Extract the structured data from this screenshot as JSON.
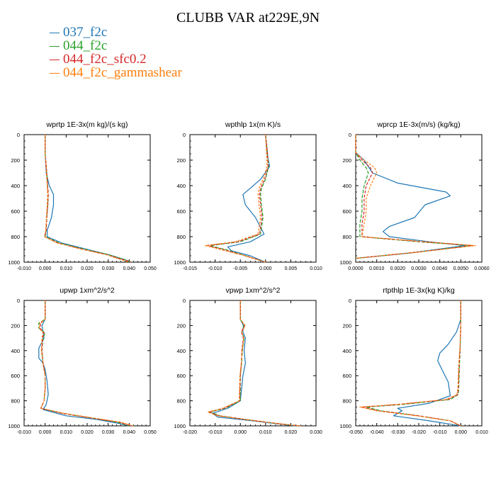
{
  "figure": {
    "title": "CLUBB VAR at229E,9N",
    "legend": [
      {
        "name": "037_f2c",
        "color": "#1f77b4"
      },
      {
        "name": "044_f2c",
        "color": "#2ca02c"
      },
      {
        "name": "044_f2c_sfc0.2",
        "color": "#d62728"
      },
      {
        "name": "044_f2c_gammashear",
        "color": "#ff7f0e"
      }
    ]
  },
  "chart_data": [
    {
      "type": "line",
      "title": "wprtp  1E-3x(m kg)/(s kg)",
      "xlim": [
        -0.01,
        0.05
      ],
      "ylim": [
        1000,
        0
      ],
      "xticks": [
        "-0.010",
        "0.000",
        "0.010",
        "0.020",
        "0.030",
        "0.040",
        "0.050"
      ],
      "yticks": [
        "0",
        "200",
        "400",
        "600",
        "800",
        "1000"
      ],
      "series": [
        {
          "name": "037_f2c",
          "color": "#1f77b4",
          "x": [
            0.0,
            0.0,
            0.0005,
            0.002,
            0.004,
            0.004,
            0.003,
            0.001,
            0.001,
            0.008,
            0.02,
            0.03,
            0.038,
            0.041
          ],
          "y": [
            0,
            150,
            300,
            400,
            470,
            550,
            650,
            750,
            800,
            850,
            900,
            940,
            980,
            1000
          ]
        },
        {
          "name": "044_f2c",
          "color": "#2ca02c",
          "x": [
            0.0,
            0.0,
            0.0008,
            0.0012,
            0.0015,
            0.0013,
            0.0008,
            0.0005,
            0.0,
            0.007,
            0.019,
            0.03,
            0.038,
            0.041
          ],
          "y": [
            0,
            150,
            300,
            400,
            470,
            550,
            650,
            750,
            800,
            850,
            900,
            940,
            980,
            1000
          ]
        },
        {
          "name": "044_f2c_sfc0.2",
          "color": "#d62728",
          "x": [
            0.0,
            0.0,
            0.0008,
            0.0012,
            0.0015,
            0.0013,
            0.0008,
            0.0005,
            -0.0002,
            0.006,
            0.018,
            0.029,
            0.037,
            0.041
          ],
          "y": [
            0,
            150,
            300,
            400,
            470,
            550,
            650,
            750,
            800,
            850,
            900,
            940,
            980,
            1000
          ]
        },
        {
          "name": "044_f2c_gammashear",
          "color": "#ff7f0e",
          "x": [
            0.0,
            0.0,
            0.0006,
            0.001,
            0.0012,
            0.001,
            0.0006,
            0.0003,
            -0.0004,
            0.006,
            0.018,
            0.029,
            0.036,
            0.04
          ],
          "y": [
            0,
            150,
            300,
            400,
            470,
            550,
            650,
            750,
            800,
            850,
            900,
            940,
            980,
            1000
          ]
        }
      ]
    },
    {
      "type": "line",
      "title": "wpthlp  1x(m K)/s",
      "xlim": [
        -0.015,
        0.01
      ],
      "ylim": [
        1000,
        0
      ],
      "xticks": [
        "-0.015",
        "-0.010",
        "-0.005",
        "0.000",
        "0.005",
        "0.010"
      ],
      "yticks": [
        "0",
        "200",
        "400",
        "600",
        "800",
        "1000"
      ],
      "series": [
        {
          "name": "037_f2c",
          "color": "#1f77b4",
          "x": [
            0.0,
            0.0003,
            0.0008,
            -0.001,
            -0.003,
            -0.0045,
            -0.004,
            -0.002,
            -0.0003,
            -0.003,
            -0.0075,
            -0.0068,
            -0.003,
            0.0
          ],
          "y": [
            0,
            150,
            250,
            350,
            420,
            470,
            550,
            650,
            780,
            840,
            880,
            910,
            950,
            1000
          ]
        },
        {
          "name": "044_f2c",
          "color": "#2ca02c",
          "x": [
            0.0,
            0.0004,
            0.0006,
            0.0,
            -0.0008,
            -0.001,
            -0.0008,
            -0.0005,
            -0.001,
            -0.005,
            -0.011,
            -0.008,
            -0.004,
            0.0
          ],
          "y": [
            0,
            150,
            250,
            350,
            420,
            470,
            550,
            650,
            780,
            840,
            870,
            900,
            950,
            1000
          ]
        },
        {
          "name": "044_f2c_sfc0.2",
          "color": "#d62728",
          "x": [
            0.0,
            0.0004,
            0.0005,
            -0.0002,
            -0.001,
            -0.0012,
            -0.001,
            -0.0007,
            -0.0012,
            -0.0055,
            -0.0115,
            -0.0085,
            -0.004,
            0.0
          ],
          "y": [
            0,
            150,
            250,
            350,
            420,
            470,
            550,
            650,
            780,
            840,
            870,
            900,
            950,
            1000
          ]
        },
        {
          "name": "044_f2c_gammashear",
          "color": "#ff7f0e",
          "x": [
            0.0,
            0.0002,
            0.0003,
            -0.0005,
            -0.0013,
            -0.0015,
            -0.0013,
            -0.001,
            -0.0015,
            -0.006,
            -0.012,
            -0.009,
            -0.004,
            0.0
          ],
          "y": [
            0,
            150,
            250,
            350,
            420,
            470,
            550,
            650,
            780,
            840,
            870,
            900,
            950,
            1000
          ]
        }
      ]
    },
    {
      "type": "line",
      "title": "wprcp  1E-3x(m/s) (kg/kg)",
      "xlim": [
        0.0,
        0.006
      ],
      "ylim": [
        1000,
        0
      ],
      "xticks": [
        "0.0000",
        "0.0010",
        "0.0020",
        "0.0030",
        "0.0040",
        "0.0050",
        "0.0060"
      ],
      "yticks": [
        "0",
        "200",
        "400",
        "600",
        "800",
        "1000"
      ],
      "series": [
        {
          "name": "037_f2c",
          "color": "#1f77b4",
          "x": [
            0.0,
            0.0,
            0.0004,
            0.0008,
            0.002,
            0.0043,
            0.0045,
            0.0033,
            0.0028,
            0.0016,
            0.0013,
            0.0016,
            0.0035,
            0.0052,
            0.0025,
            0.0
          ],
          "y": [
            0,
            140,
            200,
            300,
            380,
            450,
            480,
            550,
            650,
            720,
            760,
            800,
            840,
            870,
            930,
            970
          ]
        },
        {
          "name": "044_f2c",
          "color": "#2ca02c",
          "x": [
            0.0,
            0.0,
            0.0002,
            0.0005,
            0.0006,
            0.0004,
            0.0003,
            0.0003,
            0.0002,
            0.0002,
            0.003,
            0.0055,
            0.003,
            0.0
          ],
          "y": [
            0,
            140,
            200,
            260,
            300,
            400,
            500,
            600,
            700,
            800,
            840,
            870,
            920,
            970
          ]
        },
        {
          "name": "044_f2c_sfc0.2",
          "color": "#d62728",
          "x": [
            0.0,
            0.0,
            0.0003,
            0.0007,
            0.0008,
            0.0005,
            0.0004,
            0.0004,
            0.0003,
            0.0003,
            0.0032,
            0.0056,
            0.003,
            0.0
          ],
          "y": [
            0,
            140,
            200,
            260,
            300,
            400,
            500,
            600,
            700,
            800,
            840,
            870,
            920,
            970
          ]
        },
        {
          "name": "044_f2c_gammashear",
          "color": "#ff7f0e",
          "x": [
            0.0,
            0.0,
            0.0004,
            0.0009,
            0.001,
            0.0007,
            0.0005,
            0.0005,
            0.0004,
            0.0003,
            0.0033,
            0.0057,
            0.003,
            0.0
          ],
          "y": [
            0,
            140,
            200,
            260,
            300,
            400,
            500,
            600,
            700,
            800,
            840,
            870,
            920,
            970
          ]
        }
      ]
    },
    {
      "type": "line",
      "title": "upwp  1xm^2/s^2",
      "xlim": [
        -0.01,
        0.05
      ],
      "ylim": [
        1000,
        0
      ],
      "xticks": [
        "-0.010",
        "0.000",
        "0.010",
        "0.020",
        "0.030",
        "0.040",
        "0.050"
      ],
      "yticks": [
        "0",
        "200",
        "400",
        "600",
        "800",
        "1000"
      ],
      "series": [
        {
          "name": "037_f2c",
          "color": "#1f77b4",
          "x": [
            0.0,
            0.0,
            -0.0015,
            -0.001,
            -0.0005,
            -0.003,
            -0.003,
            -0.001,
            0.0,
            0.001,
            0.0015,
            0.0005,
            -0.001,
            0.01,
            0.025,
            0.035,
            0.04
          ],
          "y": [
            0,
            150,
            200,
            250,
            300,
            380,
            460,
            500,
            550,
            650,
            750,
            830,
            870,
            920,
            950,
            980,
            1000
          ]
        },
        {
          "name": "044_f2c",
          "color": "#2ca02c",
          "x": [
            0.0,
            0.0,
            -0.003,
            -0.003,
            0.0,
            -0.001,
            -0.0015,
            -0.001,
            0.0,
            0.0,
            -0.0005,
            -0.002,
            0.008,
            0.023,
            0.034,
            0.04
          ],
          "y": [
            0,
            150,
            180,
            220,
            260,
            300,
            400,
            500,
            600,
            700,
            800,
            860,
            900,
            940,
            970,
            1000
          ]
        },
        {
          "name": "044_f2c_sfc0.2",
          "color": "#d62728",
          "x": [
            0.0,
            0.0,
            -0.002,
            -0.0025,
            -0.0005,
            -0.0012,
            -0.0015,
            -0.001,
            0.0,
            0.0,
            -0.0005,
            -0.002,
            0.008,
            0.023,
            0.035,
            0.041
          ],
          "y": [
            0,
            150,
            180,
            220,
            260,
            300,
            400,
            500,
            600,
            700,
            800,
            860,
            900,
            940,
            970,
            1000
          ]
        },
        {
          "name": "044_f2c_gammashear",
          "color": "#ff7f0e",
          "x": [
            0.0,
            0.0,
            -0.0025,
            -0.0028,
            -0.001,
            -0.0015,
            -0.0018,
            -0.001,
            0.0,
            0.0,
            -0.0005,
            -0.002,
            0.009,
            0.024,
            0.036,
            0.042
          ],
          "y": [
            0,
            150,
            180,
            220,
            260,
            300,
            400,
            500,
            600,
            700,
            800,
            860,
            900,
            940,
            970,
            1000
          ]
        }
      ]
    },
    {
      "type": "line",
      "title": "vpwp  1xm^2/s^2",
      "xlim": [
        -0.02,
        0.03
      ],
      "ylim": [
        1000,
        0
      ],
      "xticks": [
        "-0.020",
        "-0.010",
        "0.000",
        "0.010",
        "0.020",
        "0.030"
      ],
      "yticks": [
        "0",
        "200",
        "400",
        "600",
        "800",
        "1000"
      ],
      "series": [
        {
          "name": "037_f2c",
          "color": "#1f77b4",
          "x": [
            0.0,
            0.0,
            0.0012,
            0.001,
            0.002,
            0.0015,
            0.002,
            0.001,
            0.0,
            -0.005,
            -0.011,
            -0.009,
            0.005,
            0.015,
            0.022
          ],
          "y": [
            0,
            150,
            200,
            250,
            300,
            400,
            500,
            600,
            800,
            860,
            900,
            930,
            960,
            985,
            1000
          ]
        },
        {
          "name": "044_f2c",
          "color": "#2ca02c",
          "x": [
            0.0,
            0.0,
            0.0015,
            0.0005,
            0.0015,
            0.0008,
            0.0005,
            0.0,
            0.0,
            -0.006,
            -0.012,
            -0.008,
            0.006,
            0.016,
            0.023
          ],
          "y": [
            0,
            150,
            200,
            250,
            300,
            400,
            500,
            600,
            800,
            860,
            890,
            920,
            960,
            985,
            1000
          ]
        },
        {
          "name": "044_f2c_sfc0.2",
          "color": "#d62728",
          "x": [
            0.0,
            0.0,
            0.0017,
            0.0004,
            0.0012,
            0.0006,
            0.0004,
            0.0,
            -0.0003,
            -0.0065,
            -0.0125,
            -0.0085,
            0.006,
            0.016,
            0.023
          ],
          "y": [
            0,
            150,
            200,
            250,
            300,
            400,
            500,
            600,
            800,
            860,
            890,
            920,
            960,
            985,
            1000
          ]
        },
        {
          "name": "044_f2c_gammashear",
          "color": "#ff7f0e",
          "x": [
            0.0,
            0.0,
            0.0019,
            0.0006,
            0.0014,
            0.0007,
            0.0004,
            -0.0002,
            -0.0005,
            -0.007,
            -0.013,
            -0.009,
            0.006,
            0.016,
            0.024
          ],
          "y": [
            0,
            150,
            200,
            250,
            300,
            400,
            500,
            600,
            800,
            860,
            890,
            920,
            960,
            985,
            1000
          ]
        }
      ]
    },
    {
      "type": "line",
      "title": "rtpthlp  1E-3x(kg K)/kg",
      "xlim": [
        -0.05,
        0.01
      ],
      "ylim": [
        1000,
        0
      ],
      "xticks": [
        "-0.050",
        "-0.040",
        "-0.030",
        "-0.020",
        "-0.010",
        "0.000",
        "0.010"
      ],
      "yticks": [
        "0",
        "200",
        "400",
        "600",
        "800",
        "1000"
      ],
      "series": [
        {
          "name": "037_f2c",
          "color": "#1f77b4",
          "x": [
            0.0,
            0.0,
            -0.002,
            -0.006,
            -0.01,
            -0.011,
            -0.009,
            -0.006,
            -0.005,
            -0.015,
            -0.03,
            -0.028,
            -0.032,
            -0.015,
            0.0
          ],
          "y": [
            0,
            150,
            250,
            350,
            420,
            480,
            550,
            650,
            760,
            820,
            860,
            880,
            920,
            960,
            1000
          ]
        },
        {
          "name": "044_f2c",
          "color": "#2ca02c",
          "x": [
            0.0,
            0.0,
            -0.0003,
            -0.0006,
            -0.0008,
            -0.001,
            -0.0012,
            -0.005,
            -0.028,
            -0.045,
            -0.038,
            -0.02,
            -0.005,
            0.0
          ],
          "y": [
            0,
            200,
            400,
            500,
            600,
            700,
            750,
            790,
            830,
            850,
            880,
            920,
            960,
            1000
          ]
        },
        {
          "name": "044_f2c_sfc0.2",
          "color": "#d62728",
          "x": [
            0.0,
            0.0,
            -0.0004,
            -0.0008,
            -0.001,
            -0.0012,
            -0.0015,
            -0.006,
            -0.03,
            -0.047,
            -0.039,
            -0.02,
            -0.005,
            0.0
          ],
          "y": [
            0,
            200,
            400,
            500,
            600,
            700,
            750,
            790,
            830,
            850,
            880,
            920,
            960,
            1000
          ]
        },
        {
          "name": "044_f2c_gammashear",
          "color": "#ff7f0e",
          "x": [
            0.0,
            0.0,
            -0.0005,
            -0.001,
            -0.0012,
            -0.0014,
            -0.0018,
            -0.007,
            -0.031,
            -0.048,
            -0.04,
            -0.021,
            -0.005,
            0.0
          ],
          "y": [
            0,
            200,
            400,
            500,
            600,
            700,
            750,
            790,
            830,
            850,
            880,
            920,
            960,
            1000
          ]
        }
      ]
    }
  ]
}
